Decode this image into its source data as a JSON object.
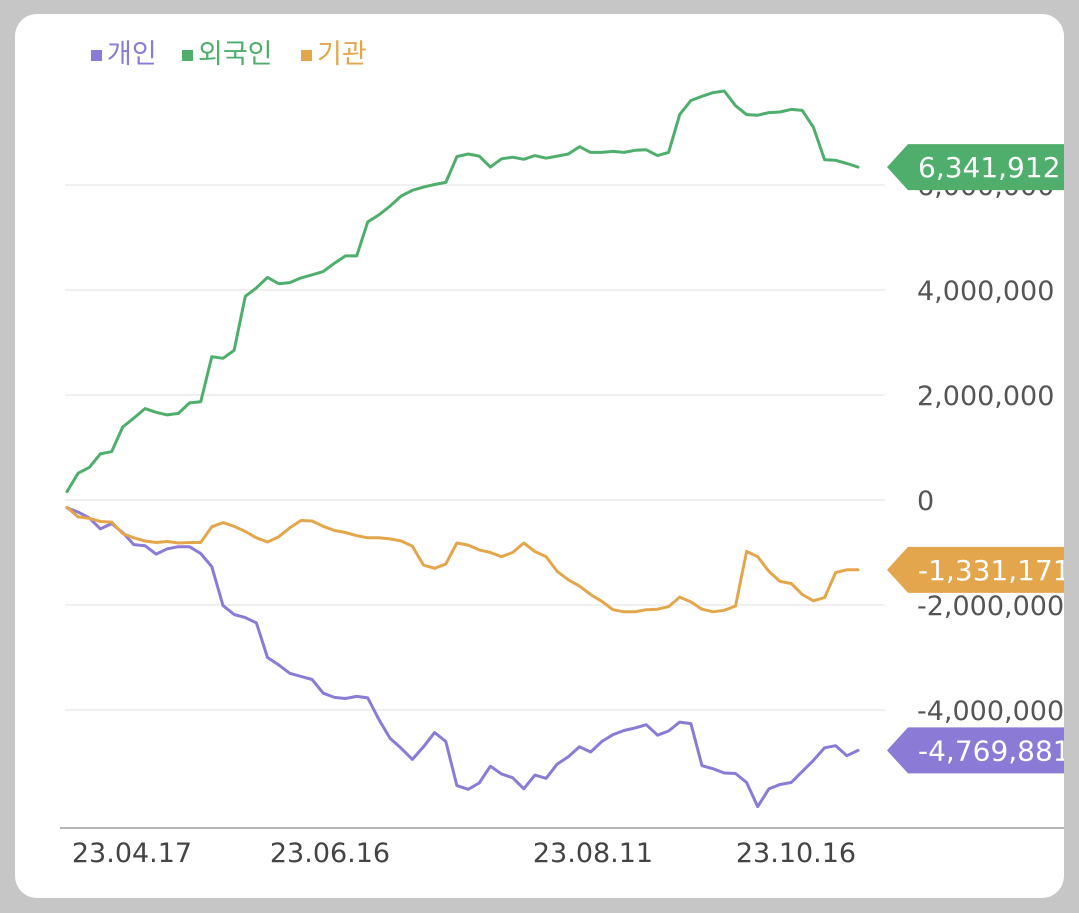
{
  "chart_data": {
    "type": "line",
    "title": "",
    "xlabel": "",
    "ylabel": "",
    "ylim": [
      -6300000,
      7500000
    ],
    "y_ticks": [
      {
        "value": 6000000,
        "label": "6,000,000"
      },
      {
        "value": 4000000,
        "label": "4,000,000"
      },
      {
        "value": 2000000,
        "label": "2,000,000"
      },
      {
        "value": 0,
        "label": "0"
      },
      {
        "value": -2000000,
        "label": "-2,000,000"
      },
      {
        "value": -4000000,
        "label": "-4,000,000"
      }
    ],
    "x_ticks": [
      "23.04.17",
      "23.06.16",
      "23.08.11",
      "23.10.16"
    ],
    "legend": {
      "placement": "top-left"
    },
    "grid": true,
    "series": [
      {
        "name": "개인",
        "color": "#8b7ad6",
        "last_label": "-4,769,881",
        "values": [
          -150000,
          -230000,
          -340000,
          -550000,
          -450000,
          -620000,
          -850000,
          -870000,
          -1030000,
          -930000,
          -890000,
          -890000,
          -1020000,
          -1270000,
          -2010000,
          -2180000,
          -2240000,
          -2340000,
          -3000000,
          -3140000,
          -3300000,
          -3360000,
          -3420000,
          -3680000,
          -3760000,
          -3780000,
          -3740000,
          -3770000,
          -4180000,
          -4540000,
          -4730000,
          -4940000,
          -4700000,
          -4430000,
          -4600000,
          -5440000,
          -5510000,
          -5390000,
          -5070000,
          -5220000,
          -5290000,
          -5500000,
          -5240000,
          -5300000,
          -5030000,
          -4890000,
          -4700000,
          -4800000,
          -4600000,
          -4470000,
          -4390000,
          -4340000,
          -4280000,
          -4480000,
          -4400000,
          -4230000,
          -4260000,
          -5060000,
          -5120000,
          -5200000,
          -5210000,
          -5380000,
          -5840000,
          -5500000,
          -5420000,
          -5380000,
          -5170000,
          -4960000,
          -4720000,
          -4680000,
          -4870000,
          -4770000
        ]
      },
      {
        "name": "외국인",
        "color": "#4fae6c",
        "last_label": "6,341,912",
        "values": [
          160000,
          510000,
          620000,
          880000,
          920000,
          1390000,
          1560000,
          1740000,
          1670000,
          1620000,
          1650000,
          1850000,
          1870000,
          2730000,
          2700000,
          2850000,
          3880000,
          4040000,
          4240000,
          4120000,
          4140000,
          4230000,
          4290000,
          4350000,
          4510000,
          4650000,
          4650000,
          5300000,
          5430000,
          5600000,
          5790000,
          5900000,
          5960000,
          6010000,
          6050000,
          6540000,
          6590000,
          6550000,
          6340000,
          6500000,
          6530000,
          6490000,
          6560000,
          6510000,
          6550000,
          6590000,
          6730000,
          6620000,
          6620000,
          6640000,
          6620000,
          6660000,
          6670000,
          6560000,
          6620000,
          7340000,
          7610000,
          7690000,
          7760000,
          7790000,
          7510000,
          7340000,
          7330000,
          7380000,
          7390000,
          7440000,
          7420000,
          7100000,
          6480000,
          6470000,
          6410000,
          6340000
        ]
      },
      {
        "name": "기관",
        "color": "#e3a64c",
        "last_label": "-1,331,171",
        "values": [
          -140000,
          -320000,
          -350000,
          -410000,
          -420000,
          -640000,
          -720000,
          -780000,
          -810000,
          -790000,
          -820000,
          -810000,
          -810000,
          -510000,
          -430000,
          -500000,
          -600000,
          -720000,
          -800000,
          -700000,
          -530000,
          -390000,
          -400000,
          -500000,
          -580000,
          -620000,
          -680000,
          -720000,
          -720000,
          -740000,
          -780000,
          -880000,
          -1240000,
          -1300000,
          -1220000,
          -820000,
          -860000,
          -950000,
          -1000000,
          -1080000,
          -1000000,
          -820000,
          -980000,
          -1080000,
          -1360000,
          -1520000,
          -1640000,
          -1800000,
          -1930000,
          -2090000,
          -2130000,
          -2130000,
          -2090000,
          -2080000,
          -2030000,
          -1850000,
          -1940000,
          -2080000,
          -2130000,
          -2100000,
          -2020000,
          -980000,
          -1080000,
          -1360000,
          -1550000,
          -1590000,
          -1800000,
          -1920000,
          -1860000,
          -1380000,
          -1330000,
          -1330000
        ]
      }
    ]
  }
}
